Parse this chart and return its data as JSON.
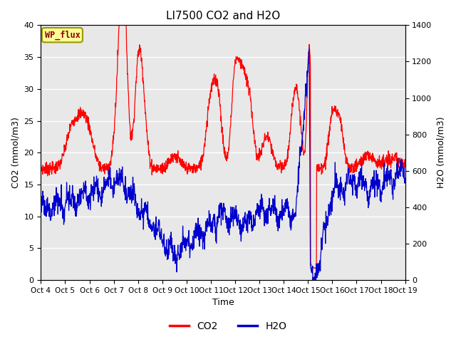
{
  "title": "LI7500 CO2 and H2O",
  "xlabel": "Time",
  "ylabel_left": "CO2 (mmol/m3)",
  "ylabel_right": "H2O (mmol/m3)",
  "ylim_left": [
    0,
    40
  ],
  "ylim_right": [
    0,
    1400
  ],
  "x_tick_labels": [
    "Oct 4",
    "Oct 5",
    "Oct 6",
    "Oct 7",
    "Oct 8",
    "Oct 9",
    "Oct 10",
    "Oct 11",
    "Oct 12",
    "Oct 13",
    "Oct 14",
    "Oct 15",
    "Oct 16",
    "Oct 17",
    "Oct 18",
    "Oct 19"
  ],
  "annotation_text": "WP_flux",
  "annotation_color": "#8B0000",
  "annotation_bg": "#FFFF99",
  "annotation_edge": "#999900",
  "bg_color": "#E8E8E8",
  "co2_color": "#FF0000",
  "h2o_color": "#0000CD",
  "title_fontsize": 11,
  "line_width": 0.9
}
